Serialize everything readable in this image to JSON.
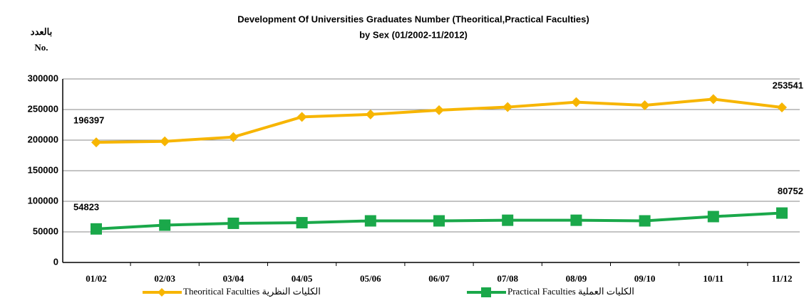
{
  "chart_data": {
    "type": "line",
    "title": "Development Of Universities Graduates Number (Theoritical,Practical Faculties)",
    "subtitle": "by Sex (01/2002-11/2012)",
    "y_label_ar": "بالعدد",
    "y_label": "No.",
    "categories": [
      "01/02",
      "02/03",
      "03/04",
      "04/05",
      "05/06",
      "06/07",
      "07/08",
      "08/09",
      "09/10",
      "10/11",
      "11/12"
    ],
    "series": [
      {
        "name": "Theoritical Faculties  الكليات النظرية",
        "color": "#f7b500",
        "marker": "diamond",
        "values": [
          196397,
          198000,
          205000,
          238000,
          242000,
          249000,
          254000,
          262000,
          257000,
          267000,
          253541
        ]
      },
      {
        "name": "Practical Faculties  الكليات العملية",
        "color": "#1aa84a",
        "marker": "square",
        "values": [
          54823,
          61000,
          64000,
          65000,
          68000,
          68000,
          69000,
          69000,
          68000,
          75000,
          80752
        ]
      }
    ],
    "ylim": [
      0,
      300000
    ],
    "yticks": [
      0,
      50000,
      100000,
      150000,
      200000,
      250000,
      300000
    ],
    "grid": true
  }
}
